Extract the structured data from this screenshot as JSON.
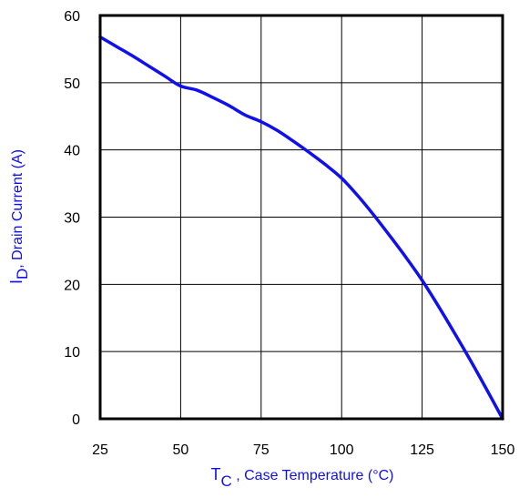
{
  "chart_data": {
    "type": "line",
    "title": "",
    "xlabel": {
      "main": "T",
      "sub": "C",
      "rest": " , Case Temperature (°C)"
    },
    "ylabel": {
      "main": "I",
      "sub": "D",
      "rest": ",  Drain Current (A)"
    },
    "xlim": [
      25,
      150
    ],
    "ylim": [
      0,
      60
    ],
    "x_ticks": [
      25,
      50,
      75,
      100,
      125,
      150
    ],
    "y_ticks": [
      0,
      10,
      20,
      30,
      40,
      50,
      60
    ],
    "grid": true,
    "legend": "none",
    "series": [
      {
        "color": "#1010ee",
        "x": [
          25,
          30,
          35,
          40,
          45,
          50,
          55,
          60,
          65,
          70,
          75,
          80,
          85,
          90,
          95,
          100,
          105,
          110,
          115,
          120,
          125,
          130,
          135,
          140,
          145,
          150
        ],
        "y": [
          56.8,
          55.4,
          54.0,
          52.5,
          51.0,
          49.5,
          48.9,
          47.8,
          46.6,
          45.2,
          44.2,
          42.9,
          41.3,
          39.6,
          37.8,
          35.8,
          33.2,
          30.3,
          27.2,
          24.0,
          20.6,
          16.8,
          12.8,
          8.7,
          4.4,
          0.0
        ]
      }
    ]
  }
}
